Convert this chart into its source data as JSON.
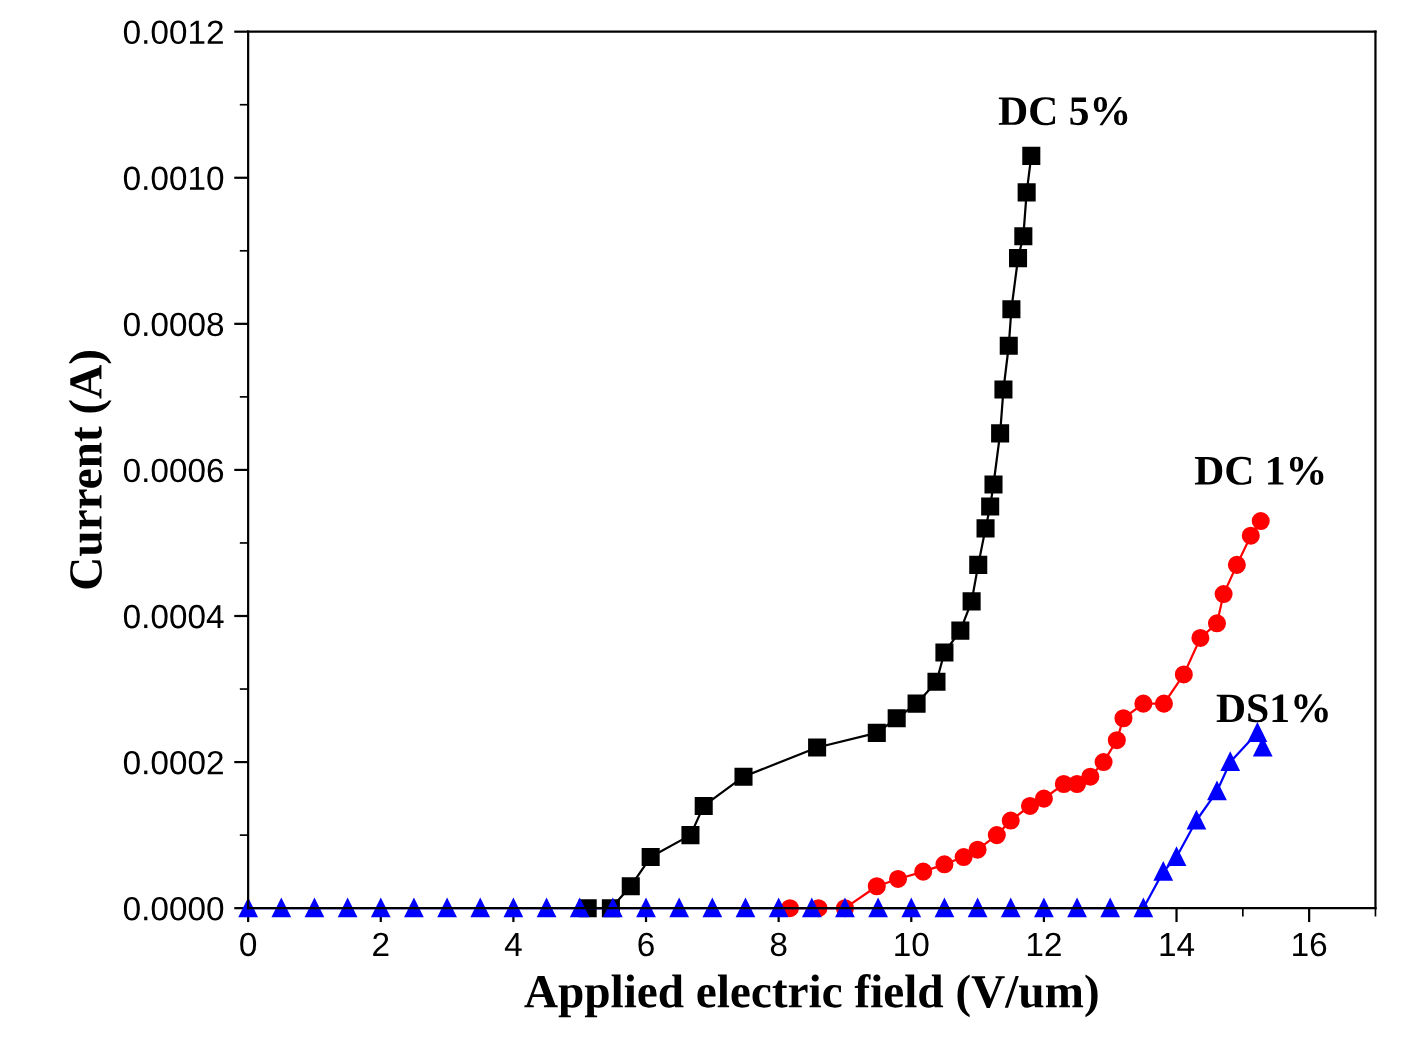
{
  "chart_data": {
    "type": "line",
    "xlabel": "Applied electric field (V/um)",
    "ylabel": "Current (A)",
    "xlim": [
      0,
      17
    ],
    "xticks": [
      0,
      2,
      4,
      6,
      8,
      10,
      12,
      14,
      16
    ],
    "ylim": [
      0,
      0.0012
    ],
    "yticks": [
      {
        "value": 0,
        "label": "0.0000"
      },
      {
        "value": 0.0002,
        "label": "0.0002"
      },
      {
        "value": 0.0004,
        "label": "0.0004"
      },
      {
        "value": 0.0006,
        "label": "0.0006"
      },
      {
        "value": 0.0008,
        "label": "0.0008"
      },
      {
        "value": 0.001,
        "label": "0.0010"
      },
      {
        "value": 0.0012,
        "label": "0.0012"
      }
    ],
    "grid": false,
    "legend": false,
    "series": [
      {
        "name": "DC 5%",
        "color": "#000000",
        "marker": "square",
        "line_style": "solid",
        "x": [
          5.12,
          5.47,
          5.77,
          6.07,
          6.67,
          6.87,
          7.47,
          8.58,
          9.48,
          9.78,
          10.08,
          10.38,
          10.5,
          10.74,
          10.91,
          11.01,
          11.12,
          11.19,
          11.24,
          11.34,
          11.39,
          11.47,
          11.51,
          11.61,
          11.69,
          11.74,
          11.81
        ],
        "values": [
          0,
          0,
          3e-05,
          7e-05,
          0.0001,
          0.00014,
          0.00018,
          0.00022,
          0.00024,
          0.00026,
          0.00028,
          0.00031,
          0.00035,
          0.00038,
          0.00042,
          0.00047,
          0.00052,
          0.00055,
          0.00058,
          0.00065,
          0.00071,
          0.00077,
          0.00082,
          0.00089,
          0.00092,
          0.00098,
          0.00103
        ]
      },
      {
        "name": "DC 1%",
        "color": "#ff0000",
        "marker": "circle",
        "line_style": "solid",
        "x": [
          8.17,
          8.6,
          9.0,
          9.48,
          9.8,
          10.18,
          10.5,
          10.79,
          11.0,
          11.29,
          11.5,
          11.79,
          12.0,
          12.3,
          12.5,
          12.7,
          12.9,
          13.1,
          13.2,
          13.5,
          13.81,
          14.11,
          14.36,
          14.61,
          14.71,
          14.91,
          15.12,
          15.27
        ],
        "values": [
          0,
          0,
          0,
          3e-05,
          4e-05,
          5e-05,
          6e-05,
          7e-05,
          8e-05,
          0.0001,
          0.00012,
          0.00014,
          0.00015,
          0.00017,
          0.00017,
          0.00018,
          0.0002,
          0.00023,
          0.00026,
          0.00028,
          0.00028,
          0.00032,
          0.00037,
          0.00039,
          0.00043,
          0.00047,
          0.00051,
          0.00053
        ]
      },
      {
        "name": "DS1%",
        "color": "#0000ff",
        "marker": "triangle",
        "line_style": "solid",
        "x": [
          0,
          0.5,
          1,
          1.5,
          2,
          2.5,
          3,
          3.5,
          4,
          4.5,
          5,
          5.5,
          6,
          6.5,
          7,
          7.5,
          8,
          8.5,
          9,
          9.5,
          10,
          10.5,
          11,
          11.5,
          12,
          12.5,
          13,
          13.5,
          13.8,
          14.0,
          14.3,
          14.61,
          14.81,
          15.22,
          15.3
        ],
        "values": [
          0,
          0,
          0,
          0,
          0,
          0,
          0,
          0,
          0,
          0,
          0,
          0,
          0,
          0,
          0,
          0,
          0,
          0,
          0,
          0,
          0,
          0,
          0,
          0,
          0,
          0,
          0,
          0,
          5e-05,
          7e-05,
          0.00012,
          0.00016,
          0.0002,
          0.00024,
          0.00022
        ]
      }
    ]
  }
}
